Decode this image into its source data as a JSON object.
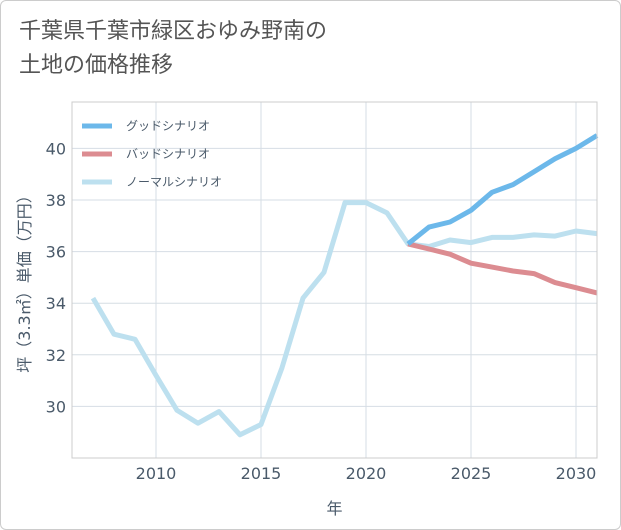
{
  "title": {
    "line1": "千葉県千葉市緑区おゆみ野南の",
    "line2": "土地の価格推移"
  },
  "chart_data": {
    "type": "line",
    "xlabel": "年",
    "ylabel": "坪（3.3㎡）単価（万円）",
    "xlim": [
      2006,
      2031
    ],
    "ylim": [
      28,
      41.8
    ],
    "x_ticks": [
      2010,
      2015,
      2020,
      2025,
      2030
    ],
    "y_ticks": [
      30,
      32,
      34,
      36,
      38,
      40
    ],
    "grid": true,
    "legend_position": "top-left",
    "series": [
      {
        "name": "グッドシナリオ",
        "color": "#6cb8ea",
        "width": 5,
        "x": [
          2022,
          2023,
          2024,
          2025,
          2026,
          2027,
          2028,
          2029,
          2030,
          2031
        ],
        "y": [
          36.3,
          36.95,
          37.15,
          37.6,
          38.3,
          38.6,
          39.1,
          39.6,
          40.0,
          40.5
        ]
      },
      {
        "name": "バッドシナリオ",
        "color": "#dc8c91",
        "width": 5,
        "x": [
          2022,
          2023,
          2024,
          2025,
          2026,
          2027,
          2028,
          2029,
          2030,
          2031
        ],
        "y": [
          36.3,
          36.1,
          35.9,
          35.55,
          35.4,
          35.25,
          35.15,
          34.8,
          34.6,
          34.4
        ]
      },
      {
        "name": "ノーマルシナリオ",
        "color": "#bde0ef",
        "width": 5,
        "x": [
          2007,
          2008,
          2009,
          2010,
          2011,
          2012,
          2013,
          2014,
          2015,
          2016,
          2017,
          2018,
          2019,
          2020,
          2021,
          2022,
          2023,
          2024,
          2025,
          2026,
          2027,
          2028,
          2029,
          2030,
          2031
        ],
        "y": [
          34.2,
          32.8,
          32.6,
          31.2,
          29.85,
          29.35,
          29.8,
          28.9,
          29.3,
          31.5,
          34.2,
          35.2,
          37.9,
          37.9,
          37.5,
          36.3,
          36.2,
          36.45,
          36.35,
          36.55,
          36.55,
          36.65,
          36.6,
          36.8,
          36.7
        ]
      }
    ]
  }
}
